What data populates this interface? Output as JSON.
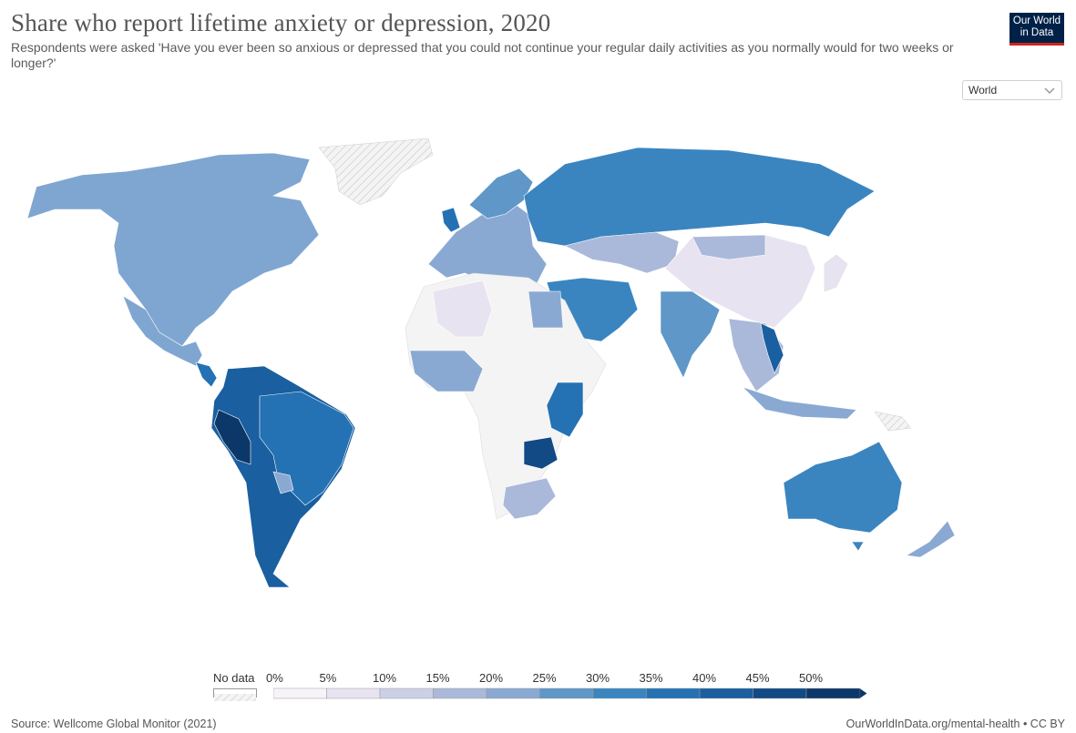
{
  "header": {
    "title": "Share who report lifetime anxiety or depression, 2020",
    "subtitle": "Respondents were asked 'Have you ever been so anxious or depressed that you could not continue your regular daily activities as you normally would for two weeks or longer?'",
    "logo_line1": "Our World",
    "logo_line2": "in Data"
  },
  "region_selector": {
    "value": "World",
    "icon": "chevron-down-icon"
  },
  "legend": {
    "no_data_label": "No data",
    "ticks": [
      "0%",
      "5%",
      "10%",
      "15%",
      "20%",
      "25%",
      "30%",
      "35%",
      "40%",
      "45%",
      "50%"
    ],
    "colors": [
      "#f7f4f9",
      "#e7e3f0",
      "#ccd0e6",
      "#aab9da",
      "#8aa9d2",
      "#5e97c8",
      "#3a85c0",
      "#2471b3",
      "#1a5f9f",
      "#114a85",
      "#0b3868"
    ]
  },
  "footer": {
    "source": "Source: Wellcome Global Monitor (2021)",
    "url": "OurWorldInData.org/mental-health • CC BY"
  }
}
